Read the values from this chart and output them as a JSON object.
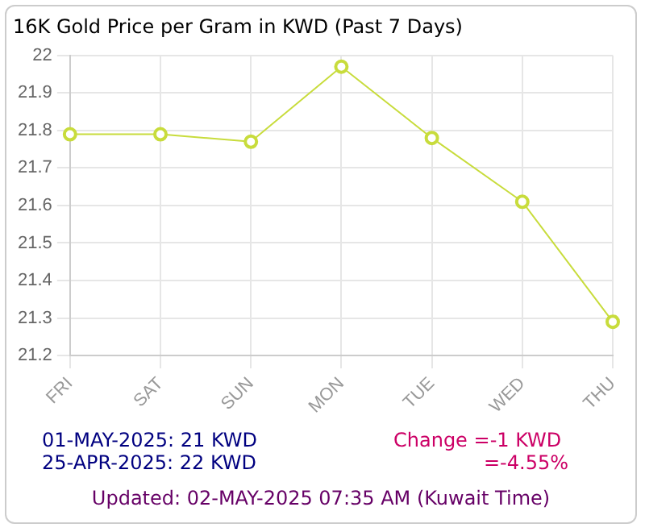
{
  "chart_data": {
    "type": "line",
    "title": "16K Gold Price per Gram in KWD (Past 7 Days)",
    "categories": [
      "FRI",
      "SAT",
      "SUN",
      "MON",
      "TUE",
      "WED",
      "THU"
    ],
    "series": [
      {
        "color": "#c8dc3c",
        "values": [
          21.79,
          21.79,
          21.77,
          21.97,
          21.78,
          21.61,
          21.29
        ]
      }
    ],
    "ylim": [
      21.2,
      22
    ],
    "yticks": [
      21.2,
      21.3,
      21.4,
      21.5,
      21.6,
      21.7,
      21.8,
      21.9,
      22
    ],
    "grid": true,
    "legend": false,
    "marker": "circle",
    "line_style": "solid",
    "annotations": [
      "01-MAY-2025: 21 KWD",
      "25-APR-2025: 22 KWD",
      "Change =-1 KWD",
      "=-4.55%",
      "Updated: 02-MAY-2025 07:35 AM (Kuwait Time)"
    ]
  }
}
